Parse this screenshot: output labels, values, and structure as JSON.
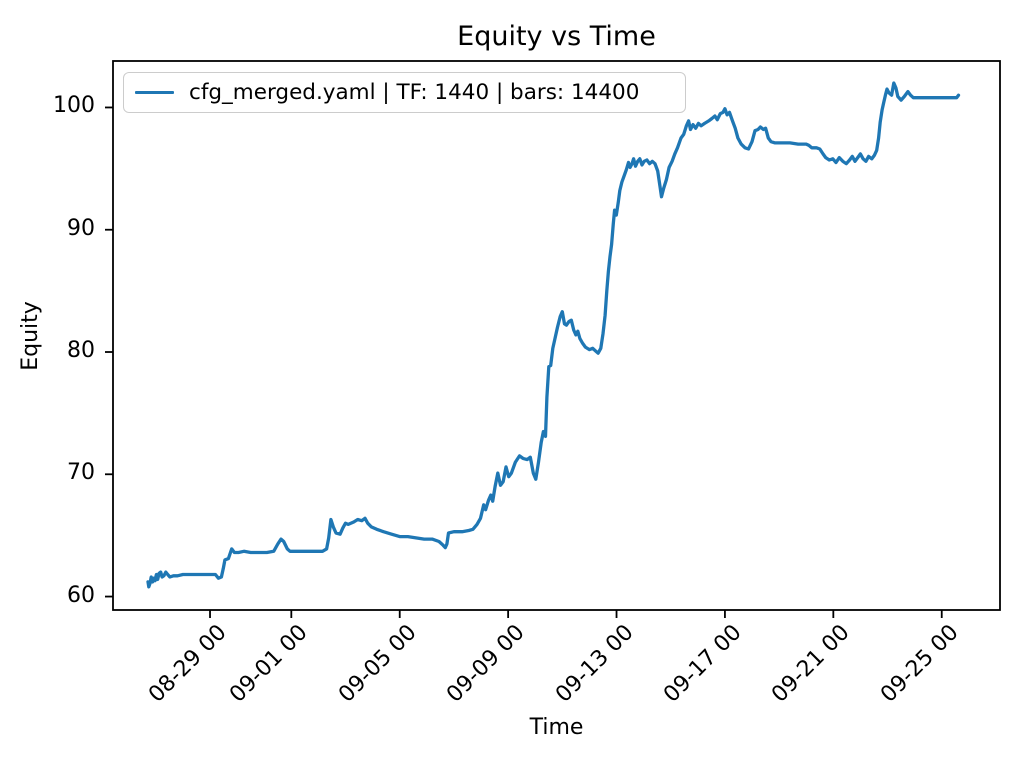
{
  "figure": {
    "title": "Equity vs Time",
    "xlabel": "Time",
    "ylabel": "Equity"
  },
  "chart_data": {
    "type": "line",
    "title": "Equity vs Time",
    "xlabel": "Time",
    "ylabel": "Equity",
    "grid": false,
    "legend_position": "upper left",
    "background": "#ffffff",
    "spine_color": "#000000",
    "y_ticks": [
      60,
      70,
      80,
      90,
      100
    ],
    "x_ticks": [
      {
        "day": 4,
        "label": "08-29 00"
      },
      {
        "day": 7,
        "label": "09-01 00"
      },
      {
        "day": 11,
        "label": "09-05 00"
      },
      {
        "day": 15,
        "label": "09-09 00"
      },
      {
        "day": 19,
        "label": "09-13 00"
      },
      {
        "day": 23,
        "label": "09-17 00"
      },
      {
        "day": 27,
        "label": "09-21 00"
      },
      {
        "day": 31,
        "label": "09-25 00"
      }
    ],
    "xlim_days": [
      0.42,
      33.15
    ],
    "ylim": [
      58.9,
      103.8
    ],
    "series": [
      {
        "name": "cfg_merged.yaml | TF: 1440 | bars: 14400",
        "color": "#1f77b4",
        "points": [
          [
            1.71,
            61.2
          ],
          [
            1.74,
            60.8
          ],
          [
            1.79,
            61.1
          ],
          [
            1.83,
            61.6
          ],
          [
            1.88,
            61.2
          ],
          [
            1.93,
            61.5
          ],
          [
            1.97,
            61.3
          ],
          [
            2.02,
            61.8
          ],
          [
            2.07,
            61.4
          ],
          [
            2.12,
            61.9
          ],
          [
            2.18,
            62.0
          ],
          [
            2.23,
            61.6
          ],
          [
            2.3,
            61.7
          ],
          [
            2.37,
            62.0
          ],
          [
            2.44,
            61.8
          ],
          [
            2.52,
            61.6
          ],
          [
            2.65,
            61.7
          ],
          [
            2.8,
            61.7
          ],
          [
            3.0,
            61.8
          ],
          [
            3.3,
            61.8
          ],
          [
            3.6,
            61.8
          ],
          [
            3.95,
            61.8
          ],
          [
            4.2,
            61.8
          ],
          [
            4.31,
            61.5
          ],
          [
            4.42,
            61.6
          ],
          [
            4.49,
            62.3
          ],
          [
            4.55,
            63.0
          ],
          [
            4.68,
            63.1
          ],
          [
            4.8,
            63.9
          ],
          [
            4.9,
            63.6
          ],
          [
            5.05,
            63.6
          ],
          [
            5.25,
            63.7
          ],
          [
            5.5,
            63.6
          ],
          [
            5.8,
            63.6
          ],
          [
            6.1,
            63.6
          ],
          [
            6.35,
            63.7
          ],
          [
            6.5,
            64.3
          ],
          [
            6.62,
            64.7
          ],
          [
            6.72,
            64.5
          ],
          [
            6.85,
            63.9
          ],
          [
            6.95,
            63.7
          ],
          [
            7.2,
            63.7
          ],
          [
            7.5,
            63.7
          ],
          [
            7.85,
            63.7
          ],
          [
            8.15,
            63.7
          ],
          [
            8.3,
            63.9
          ],
          [
            8.38,
            64.8
          ],
          [
            8.46,
            66.3
          ],
          [
            8.55,
            65.7
          ],
          [
            8.65,
            65.2
          ],
          [
            8.8,
            65.1
          ],
          [
            8.9,
            65.6
          ],
          [
            9.0,
            66.0
          ],
          [
            9.1,
            65.9
          ],
          [
            9.3,
            66.1
          ],
          [
            9.45,
            66.3
          ],
          [
            9.6,
            66.2
          ],
          [
            9.72,
            66.4
          ],
          [
            9.82,
            66.0
          ],
          [
            9.95,
            65.7
          ],
          [
            10.15,
            65.5
          ],
          [
            10.4,
            65.3
          ],
          [
            10.7,
            65.1
          ],
          [
            11.0,
            64.9
          ],
          [
            11.3,
            64.9
          ],
          [
            11.6,
            64.8
          ],
          [
            11.9,
            64.7
          ],
          [
            12.2,
            64.7
          ],
          [
            12.45,
            64.5
          ],
          [
            12.6,
            64.2
          ],
          [
            12.68,
            64.0
          ],
          [
            12.74,
            64.3
          ],
          [
            12.8,
            65.2
          ],
          [
            13.0,
            65.3
          ],
          [
            13.3,
            65.3
          ],
          [
            13.55,
            65.4
          ],
          [
            13.7,
            65.5
          ],
          [
            13.85,
            65.9
          ],
          [
            13.98,
            66.4
          ],
          [
            14.1,
            67.5
          ],
          [
            14.17,
            67.1
          ],
          [
            14.28,
            67.9
          ],
          [
            14.36,
            68.3
          ],
          [
            14.43,
            67.8
          ],
          [
            14.52,
            69.0
          ],
          [
            14.62,
            70.1
          ],
          [
            14.72,
            69.1
          ],
          [
            14.82,
            69.4
          ],
          [
            14.92,
            70.6
          ],
          [
            15.02,
            69.8
          ],
          [
            15.12,
            70.1
          ],
          [
            15.27,
            71.0
          ],
          [
            15.42,
            71.5
          ],
          [
            15.55,
            71.3
          ],
          [
            15.7,
            71.2
          ],
          [
            15.82,
            71.4
          ],
          [
            15.93,
            70.1
          ],
          [
            16.02,
            69.6
          ],
          [
            16.12,
            71.0
          ],
          [
            16.22,
            72.6
          ],
          [
            16.3,
            73.5
          ],
          [
            16.38,
            73.1
          ],
          [
            16.43,
            76.3
          ],
          [
            16.5,
            78.8
          ],
          [
            16.57,
            78.9
          ],
          [
            16.65,
            80.3
          ],
          [
            16.72,
            81.0
          ],
          [
            16.82,
            82.0
          ],
          [
            16.92,
            82.9
          ],
          [
            17.0,
            83.3
          ],
          [
            17.08,
            82.3
          ],
          [
            17.15,
            82.2
          ],
          [
            17.25,
            82.5
          ],
          [
            17.33,
            82.6
          ],
          [
            17.42,
            81.8
          ],
          [
            17.5,
            81.4
          ],
          [
            17.57,
            81.7
          ],
          [
            17.65,
            81.1
          ],
          [
            17.75,
            80.7
          ],
          [
            17.85,
            80.4
          ],
          [
            18.0,
            80.2
          ],
          [
            18.12,
            80.3
          ],
          [
            18.22,
            80.1
          ],
          [
            18.32,
            79.9
          ],
          [
            18.42,
            80.3
          ],
          [
            18.5,
            81.5
          ],
          [
            18.58,
            83.0
          ],
          [
            18.64,
            85.0
          ],
          [
            18.7,
            86.6
          ],
          [
            18.76,
            87.8
          ],
          [
            18.82,
            88.8
          ],
          [
            18.88,
            90.5
          ],
          [
            18.93,
            91.6
          ],
          [
            18.99,
            91.2
          ],
          [
            19.06,
            92.2
          ],
          [
            19.12,
            93.2
          ],
          [
            19.2,
            93.9
          ],
          [
            19.28,
            94.4
          ],
          [
            19.36,
            94.9
          ],
          [
            19.44,
            95.5
          ],
          [
            19.5,
            95.1
          ],
          [
            19.57,
            95.4
          ],
          [
            19.63,
            95.8
          ],
          [
            19.7,
            95.2
          ],
          [
            19.78,
            95.6
          ],
          [
            19.86,
            95.8
          ],
          [
            19.94,
            95.3
          ],
          [
            20.02,
            95.6
          ],
          [
            20.12,
            95.7
          ],
          [
            20.22,
            95.4
          ],
          [
            20.32,
            95.6
          ],
          [
            20.42,
            95.4
          ],
          [
            20.52,
            94.8
          ],
          [
            20.6,
            93.6
          ],
          [
            20.66,
            92.7
          ],
          [
            20.74,
            93.4
          ],
          [
            20.84,
            94.1
          ],
          [
            20.94,
            95.1
          ],
          [
            21.05,
            95.6
          ],
          [
            21.15,
            96.2
          ],
          [
            21.25,
            96.7
          ],
          [
            21.38,
            97.5
          ],
          [
            21.48,
            97.8
          ],
          [
            21.58,
            98.5
          ],
          [
            21.66,
            98.9
          ],
          [
            21.73,
            98.2
          ],
          [
            21.82,
            98.6
          ],
          [
            21.92,
            98.3
          ],
          [
            22.02,
            98.7
          ],
          [
            22.12,
            98.5
          ],
          [
            22.25,
            98.7
          ],
          [
            22.4,
            98.9
          ],
          [
            22.52,
            99.1
          ],
          [
            22.63,
            99.3
          ],
          [
            22.72,
            99.0
          ],
          [
            22.83,
            99.5
          ],
          [
            22.93,
            99.6
          ],
          [
            23.0,
            99.9
          ],
          [
            23.08,
            99.4
          ],
          [
            23.17,
            99.6
          ],
          [
            23.28,
            98.9
          ],
          [
            23.38,
            98.3
          ],
          [
            23.48,
            97.5
          ],
          [
            23.6,
            97.0
          ],
          [
            23.74,
            96.7
          ],
          [
            23.87,
            96.6
          ],
          [
            24.0,
            97.2
          ],
          [
            24.11,
            98.1
          ],
          [
            24.22,
            98.2
          ],
          [
            24.31,
            98.4
          ],
          [
            24.42,
            98.2
          ],
          [
            24.5,
            98.3
          ],
          [
            24.6,
            97.5
          ],
          [
            24.7,
            97.2
          ],
          [
            24.85,
            97.1
          ],
          [
            25.1,
            97.1
          ],
          [
            25.4,
            97.1
          ],
          [
            25.7,
            97.0
          ],
          [
            26.0,
            97.0
          ],
          [
            26.1,
            96.9
          ],
          [
            26.2,
            96.7
          ],
          [
            26.38,
            96.7
          ],
          [
            26.5,
            96.6
          ],
          [
            26.62,
            96.2
          ],
          [
            26.72,
            95.9
          ],
          [
            26.85,
            95.7
          ],
          [
            26.98,
            95.8
          ],
          [
            27.1,
            95.5
          ],
          [
            27.22,
            95.9
          ],
          [
            27.35,
            95.6
          ],
          [
            27.48,
            95.4
          ],
          [
            27.6,
            95.7
          ],
          [
            27.7,
            96.0
          ],
          [
            27.8,
            95.6
          ],
          [
            27.9,
            95.9
          ],
          [
            28.0,
            96.2
          ],
          [
            28.1,
            95.8
          ],
          [
            28.2,
            95.6
          ],
          [
            28.3,
            96.0
          ],
          [
            28.42,
            95.8
          ],
          [
            28.52,
            96.1
          ],
          [
            28.6,
            96.5
          ],
          [
            28.67,
            97.5
          ],
          [
            28.73,
            98.8
          ],
          [
            28.8,
            99.8
          ],
          [
            28.86,
            100.4
          ],
          [
            28.92,
            101.0
          ],
          [
            28.98,
            101.5
          ],
          [
            29.05,
            101.2
          ],
          [
            29.15,
            101.0
          ],
          [
            29.23,
            102.0
          ],
          [
            29.31,
            101.6
          ],
          [
            29.38,
            100.9
          ],
          [
            29.5,
            100.6
          ],
          [
            29.62,
            100.9
          ],
          [
            29.75,
            101.3
          ],
          [
            29.85,
            101.0
          ],
          [
            29.95,
            100.8
          ],
          [
            30.2,
            100.8
          ],
          [
            30.6,
            100.8
          ],
          [
            31.0,
            100.8
          ],
          [
            31.4,
            100.8
          ],
          [
            31.55,
            100.8
          ],
          [
            31.62,
            101.0
          ]
        ]
      }
    ]
  }
}
